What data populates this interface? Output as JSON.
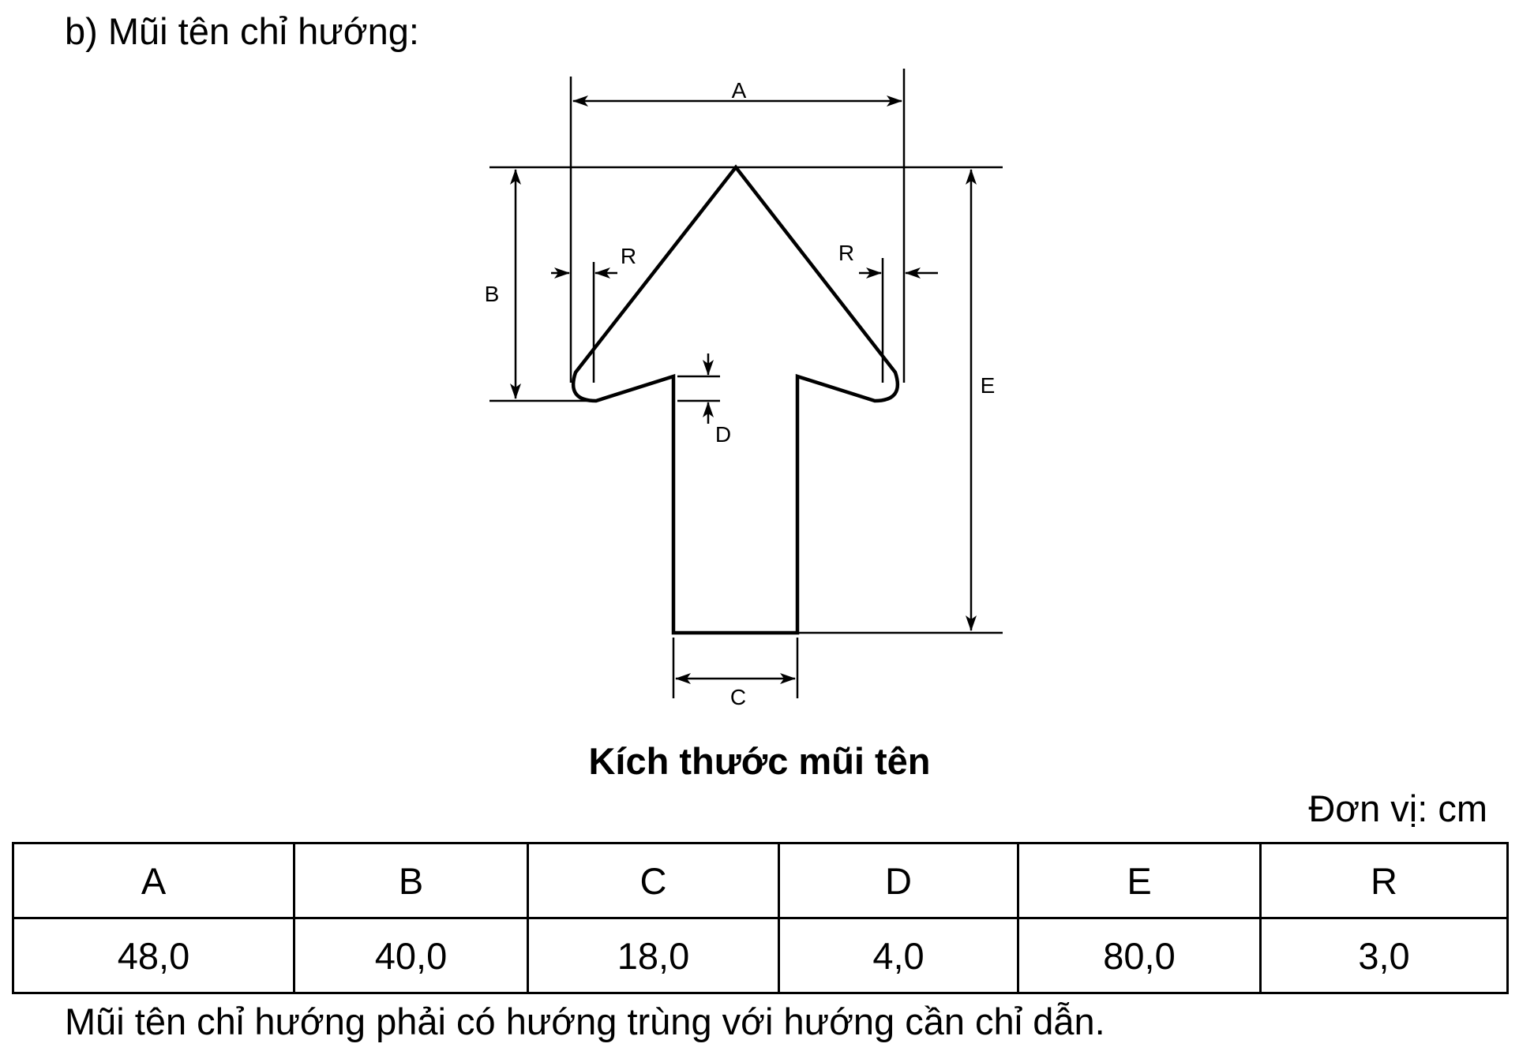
{
  "heading": "b) Mũi tên chỉ hướng:",
  "diagram": {
    "labels": {
      "a": "A",
      "b": "B",
      "c": "C",
      "d": "D",
      "e": "E",
      "r_left": "R",
      "r_right": "R"
    }
  },
  "caption": "Kích thước mũi tên",
  "unit": "Đơn vị: cm",
  "table": {
    "headers": [
      "A",
      "B",
      "C",
      "D",
      "E",
      "R"
    ],
    "values": [
      "48,0",
      "40,0",
      "18,0",
      "4,0",
      "80,0",
      "3,0"
    ]
  },
  "note": "Mũi tên chỉ hướng phải có hướng trùng với hướng cần chỉ dẫn."
}
